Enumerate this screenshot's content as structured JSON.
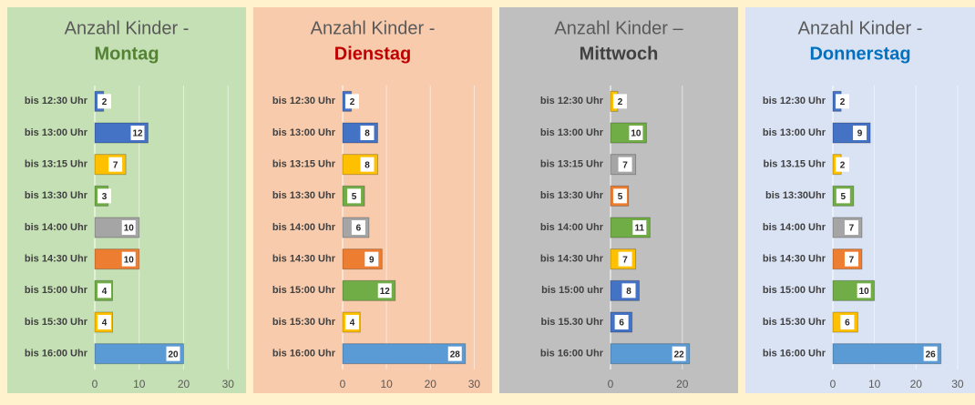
{
  "chart_data": [
    {
      "type": "bar",
      "title": "Anzahl Kinder -",
      "subtitle": "Montag",
      "subtitle_color": "#548235",
      "background": "#c5e0b4",
      "categories": [
        "bis 12:30 Uhr",
        "bis 13:00 Uhr",
        "bis 13:15 Uhr",
        "bis 13:30 Uhr",
        "bis 14:00 Uhr",
        "bis 14:30 Uhr",
        "bis 15:00 Uhr",
        "bis 15:30 Uhr",
        "bis 16:00 Uhr"
      ],
      "values": [
        2,
        12,
        7,
        3,
        10,
        10,
        4,
        4,
        20
      ],
      "colors": [
        "#4472c4",
        "#4472c4",
        "#ffc000",
        "#70ad47",
        "#a5a5a5",
        "#ed7d31",
        "#70ad47",
        "#ffc000",
        "#5b9bd5"
      ],
      "xlim": [
        0,
        32
      ],
      "xticks": [
        0,
        10,
        20,
        30
      ],
      "grid": true
    },
    {
      "type": "bar",
      "title": "Anzahl Kinder -",
      "subtitle": "Dienstag",
      "subtitle_color": "#c00000",
      "background": "#f8cbad",
      "categories": [
        "bis 12:30 Uhr",
        "bis 13:00 Uhr",
        "bis 13:15 Uhr",
        "bis 13:30 Uhr",
        "bis 14:00 Uhr",
        "bis 14:30 Uhr",
        "bis 15:00 Uhr",
        "bis 15:30 Uhr",
        "bis 16:00 Uhr"
      ],
      "values": [
        2,
        8,
        8,
        5,
        6,
        9,
        12,
        4,
        28
      ],
      "colors": [
        "#4472c4",
        "#4472c4",
        "#ffc000",
        "#70ad47",
        "#a5a5a5",
        "#ed7d31",
        "#70ad47",
        "#ffc000",
        "#5b9bd5"
      ],
      "xlim": [
        0,
        32
      ],
      "xticks": [
        0,
        10,
        20,
        30
      ],
      "grid": true
    },
    {
      "type": "bar",
      "title": "Anzahl Kinder –",
      "subtitle": "Mittwoch",
      "subtitle_color": "#404040",
      "background": "#bfbfbf",
      "categories": [
        "bis 12:30 Uhr",
        "bis 13:00 Uhr",
        "bis 13:15 Uhr",
        "bis 13:30 Uhr",
        "bis 14:00 Uhr",
        "bis 14:30 Uhr",
        "bis 15:00 uhr",
        "bis 15.30 Uhr",
        "bis 16:00 Uhr"
      ],
      "values": [
        2,
        10,
        7,
        5,
        11,
        7,
        8,
        6,
        22
      ],
      "colors": [
        "#ffc000",
        "#70ad47",
        "#a5a5a5",
        "#ed7d31",
        "#70ad47",
        "#ffc000",
        "#4472c4",
        "#4472c4",
        "#5b9bd5"
      ],
      "xlim": [
        0,
        33
      ],
      "xticks": [
        0,
        20
      ],
      "grid": true
    },
    {
      "type": "bar",
      "title": "Anzahl Kinder -",
      "subtitle": "Donnerstag",
      "subtitle_color": "#0070c0",
      "background": "#dae3f3",
      "categories": [
        "bis 12:30 Uhr",
        "bis 13:00 Uhr",
        "bis 13.15 Uhr",
        "bis 13:30Uhr",
        "bis 14:00 Uhr",
        "bis 14:30 Uhr",
        "bis 15:00 Uhr",
        "bis 15:30 Uhr",
        "bis 16:00 Uhr"
      ],
      "values": [
        2,
        9,
        2,
        5,
        7,
        7,
        10,
        6,
        26
      ],
      "colors": [
        "#4472c4",
        "#4472c4",
        "#ffc000",
        "#70ad47",
        "#a5a5a5",
        "#ed7d31",
        "#70ad47",
        "#ffc000",
        "#5b9bd5"
      ],
      "xlim": [
        0,
        32
      ],
      "xticks": [
        0,
        10,
        20,
        30
      ],
      "grid": true
    }
  ]
}
